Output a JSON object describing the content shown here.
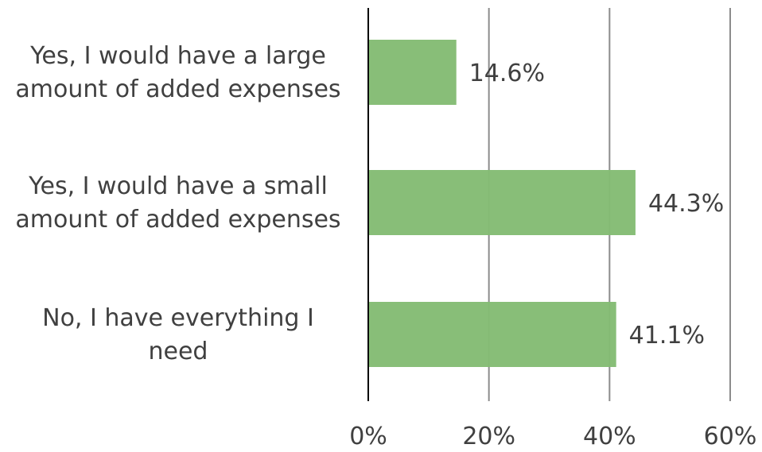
{
  "chart_data": {
    "type": "bar",
    "orientation": "horizontal",
    "categories": [
      [
        "Yes, I would have a large",
        "amount of added expenses"
      ],
      [
        "Yes, I would have a small",
        "amount of added expenses"
      ],
      [
        "No, I have everything I",
        "need"
      ]
    ],
    "values": [
      14.6,
      44.3,
      41.1
    ],
    "value_labels": [
      "14.6%",
      "44.3%",
      "41.1%"
    ],
    "x_ticks": [
      {
        "value": 0,
        "label": "0%"
      },
      {
        "value": 20,
        "label": "20%"
      },
      {
        "value": 40,
        "label": "40%"
      },
      {
        "value": 60,
        "label": "60%"
      }
    ],
    "xlim": [
      0,
      60
    ],
    "title": "",
    "xlabel": "",
    "ylabel": "",
    "grid": "vertical",
    "legend": "none",
    "colors": {
      "bar": "#84bc74",
      "grid": "#8c8c8c",
      "axis": "#000000",
      "text": "#404040"
    }
  }
}
